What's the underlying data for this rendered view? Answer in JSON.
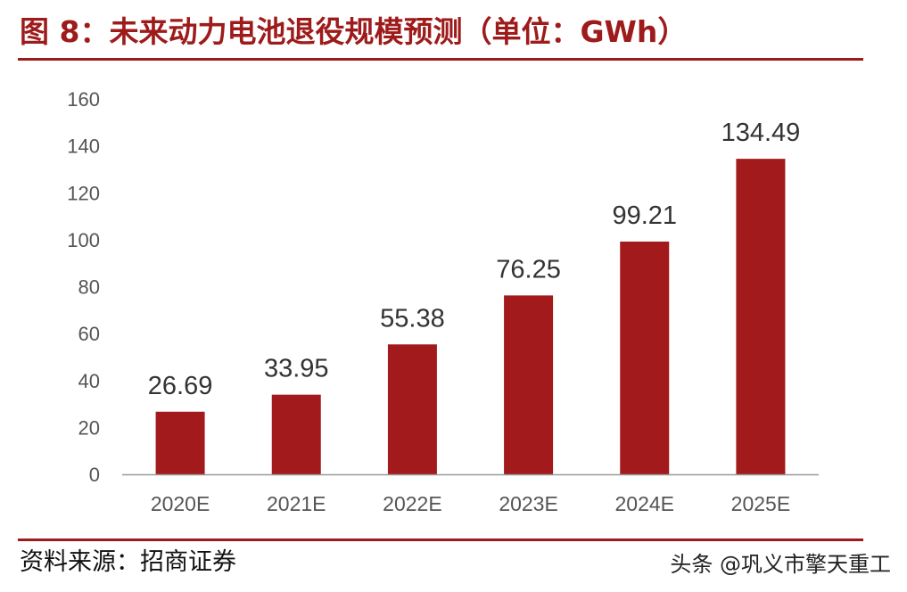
{
  "header": {
    "title": "图 8：未来动力电池退役规模预测（单位：GWh）"
  },
  "footer": {
    "source": "资料来源：招商证券",
    "credit": "头条 @巩义市擎天重工"
  },
  "colors": {
    "accent": "#9e1b1b",
    "bar": "#a31a1c",
    "axis": "#999999"
  },
  "chart_data": {
    "type": "bar",
    "title": "图 8：未来动力电池退役规模预测（单位：GWh）",
    "categories": [
      "2020E",
      "2021E",
      "2022E",
      "2023E",
      "2024E",
      "2025E"
    ],
    "values": [
      26.69,
      33.95,
      55.38,
      76.25,
      99.21,
      134.49
    ],
    "value_labels": [
      "26.69",
      "33.95",
      "55.38",
      "76.25",
      "99.21",
      "134.49"
    ],
    "yticks": [
      "0",
      "20",
      "40",
      "60",
      "80",
      "100",
      "120",
      "140",
      "160"
    ],
    "ylim": [
      0,
      160
    ],
    "xlabel": "",
    "ylabel": "",
    "grid": false,
    "legend": "none"
  }
}
